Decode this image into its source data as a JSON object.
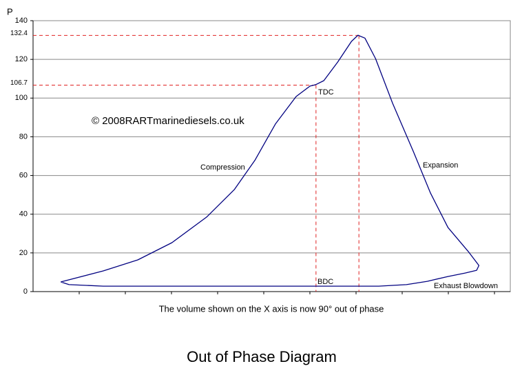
{
  "chart_data": {
    "type": "line",
    "title": "Out of Phase Diagram",
    "x_label": "The volume shown on the X axis is now 90° out of phase",
    "y_label": "P",
    "copyright": "© 2008RARTmarinediesels.co.uk",
    "annotations": [
      "TDC",
      "BDC",
      "Compression",
      "Expansion",
      "Exhaust Blowdown"
    ],
    "color": "#000080",
    "x": [
      0.6,
      1.52,
      2.27,
      3.01,
      3.76,
      4.36,
      4.81,
      5.25,
      5.7,
      6.0,
      6.12,
      6.3,
      6.6,
      6.9,
      7.04,
      7.19,
      7.42,
      7.79,
      8.24,
      8.61,
      8.99,
      9.43,
      9.66,
      9.61,
      9.36,
      8.99,
      8.54,
      8.09,
      7.49,
      6.0,
      3.76,
      1.52,
      0.78,
      0.6
    ],
    "values": [
      5.0,
      10.7,
      16.4,
      25.3,
      38.5,
      52.7,
      68.0,
      86.6,
      100.8,
      106.2,
      106.9,
      109.0,
      118.6,
      129.3,
      132.5,
      131.0,
      120.4,
      97.3,
      72.3,
      50.9,
      33.1,
      20.7,
      13.5,
      11.0,
      9.6,
      7.8,
      5.3,
      3.6,
      2.8,
      2.8,
      2.8,
      2.8,
      3.6,
      5.0
    ],
    "markers": [
      {
        "x": 6.13,
        "y": 106.7
      },
      {
        "x": 7.06,
        "y": 132.4
      }
    ],
    "marker_color": "#e02020",
    "xlim": [
      0,
      10.34
    ],
    "ylim": [
      0,
      140
    ],
    "yticks": [
      0,
      20,
      40,
      60,
      80,
      100,
      120,
      140
    ],
    "grid": true
  }
}
